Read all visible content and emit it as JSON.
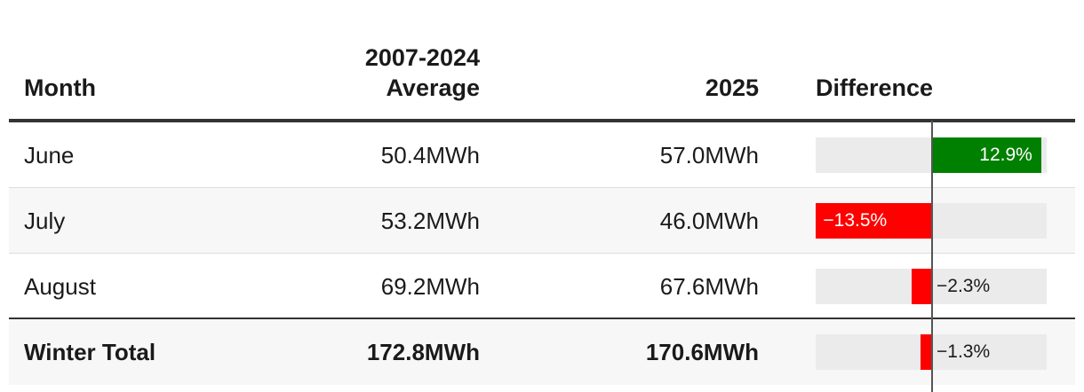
{
  "chart_data": {
    "type": "table",
    "columns": [
      "Month",
      "2007-2024 Average",
      "2025",
      "Difference"
    ],
    "rows": [
      {
        "month": "June",
        "average": "50.4MWh",
        "year": "57.0MWh",
        "diff": 12.9,
        "diff_label": "12.9%",
        "color": "#008000"
      },
      {
        "month": "July",
        "average": "53.2MWh",
        "year": "46.0MWh",
        "diff": -13.5,
        "diff_label": "−13.5%",
        "color": "#ff0000"
      },
      {
        "month": "August",
        "average": "69.2MWh",
        "year": "67.6MWh",
        "diff": -2.3,
        "diff_label": "−2.3%",
        "color": "#ff0000"
      }
    ],
    "total": {
      "month": "Winter Total",
      "average": "172.8MWh",
      "year": "170.6MWh",
      "diff": -1.3,
      "diff_label": "−1.3%",
      "color": "#ff0000"
    },
    "diff_range": [
      -15,
      15
    ],
    "colors": {
      "positive": "#008000",
      "negative": "#ff0000",
      "track": "#ebebeb"
    }
  }
}
